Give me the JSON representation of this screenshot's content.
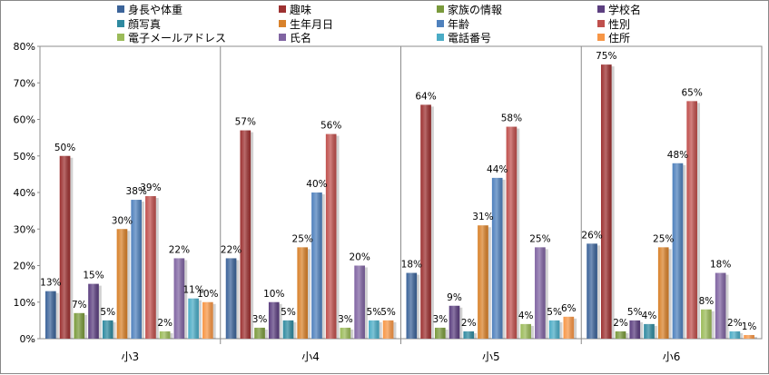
{
  "chart_data": {
    "type": "bar",
    "title": "",
    "xlabel": "",
    "ylabel": "",
    "ylim": [
      0,
      80
    ],
    "yticks": [
      "0%",
      "10%",
      "20%",
      "30%",
      "40%",
      "50%",
      "60%",
      "70%",
      "80%"
    ],
    "grid": false,
    "legend_position": "top",
    "categories": [
      "小3",
      "小4",
      "小5",
      "小6"
    ],
    "series": [
      {
        "name": "身長や体重",
        "color": "#3C649A",
        "values": [
          13,
          22,
          18,
          26
        ]
      },
      {
        "name": "趣味",
        "color": "#9D3131",
        "values": [
          50,
          57,
          64,
          75
        ]
      },
      {
        "name": "家族の情報",
        "color": "#7A9A3C",
        "values": [
          7,
          3,
          3,
          2
        ]
      },
      {
        "name": "学校名",
        "color": "#5C3F80",
        "values": [
          15,
          10,
          9,
          5
        ]
      },
      {
        "name": "顔写真",
        "color": "#2F8AA0",
        "values": [
          5,
          5,
          2,
          4
        ]
      },
      {
        "name": "生年月日",
        "color": "#D9822B",
        "values": [
          30,
          25,
          31,
          25
        ]
      },
      {
        "name": "年齢",
        "color": "#4F81BD",
        "values": [
          38,
          40,
          44,
          48
        ]
      },
      {
        "name": "性別",
        "color": "#C0504D",
        "values": [
          39,
          56,
          58,
          65
        ]
      },
      {
        "name": "電子メールアドレス",
        "color": "#9BBB59",
        "values": [
          2,
          3,
          4,
          8
        ]
      },
      {
        "name": "氏名",
        "color": "#8064A2",
        "values": [
          22,
          20,
          25,
          18
        ]
      },
      {
        "name": "電話番号",
        "color": "#4BACC6",
        "values": [
          11,
          5,
          5,
          2
        ]
      },
      {
        "name": "住所",
        "color": "#F79646",
        "values": [
          10,
          5,
          6,
          1
        ]
      }
    ],
    "value_labels": [
      [
        "13%",
        "22%",
        "18%",
        "26%"
      ],
      [
        "50%",
        "57%",
        "64%",
        "75%"
      ],
      [
        "7%",
        "3%",
        "3%",
        "2%"
      ],
      [
        "15%",
        "10%",
        "9%",
        "5%"
      ],
      [
        "5%",
        "5%",
        "2%",
        "4%"
      ],
      [
        "30%",
        "25%",
        "31%",
        "25%"
      ],
      [
        "38%",
        "40%",
        "44%",
        "48%"
      ],
      [
        "39%",
        "56%",
        "58%",
        "65%"
      ],
      [
        "2%",
        "3%",
        "4%",
        "8%"
      ],
      [
        "22%",
        "20%",
        "25%",
        "18%"
      ],
      [
        "11%",
        "5%",
        "5%",
        "2%"
      ],
      [
        "10%",
        "5%",
        "6%",
        "1%"
      ]
    ]
  }
}
